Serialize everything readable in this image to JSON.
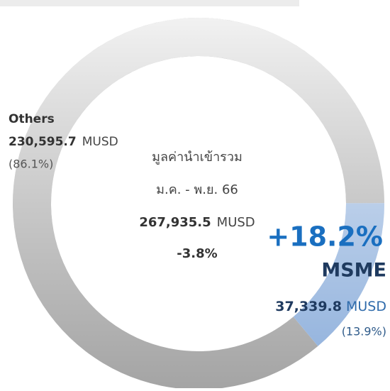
{
  "chart_data": {
    "type": "donut",
    "center_title": "มูลค่านำเข้ารวม",
    "center_period": "ม.ค. - พ.ย. 66",
    "total": 267935.5,
    "total_label": "267,935.5",
    "unit": "MUSD",
    "total_change": -3.8,
    "total_change_label": "-3.8%",
    "categories": [
      "Others",
      "MSME"
    ],
    "values": [
      230595.7,
      37339.8
    ],
    "value_labels": [
      "230,595.7",
      "37,339.8"
    ],
    "shares": [
      86.1,
      13.9
    ],
    "share_labels": [
      "(86.1%)",
      "(13.9%)"
    ],
    "colors": [
      "#a4a4a4",
      "#8caedb"
    ],
    "growth": {
      "value": 18.2,
      "label": "+18.2%"
    }
  }
}
